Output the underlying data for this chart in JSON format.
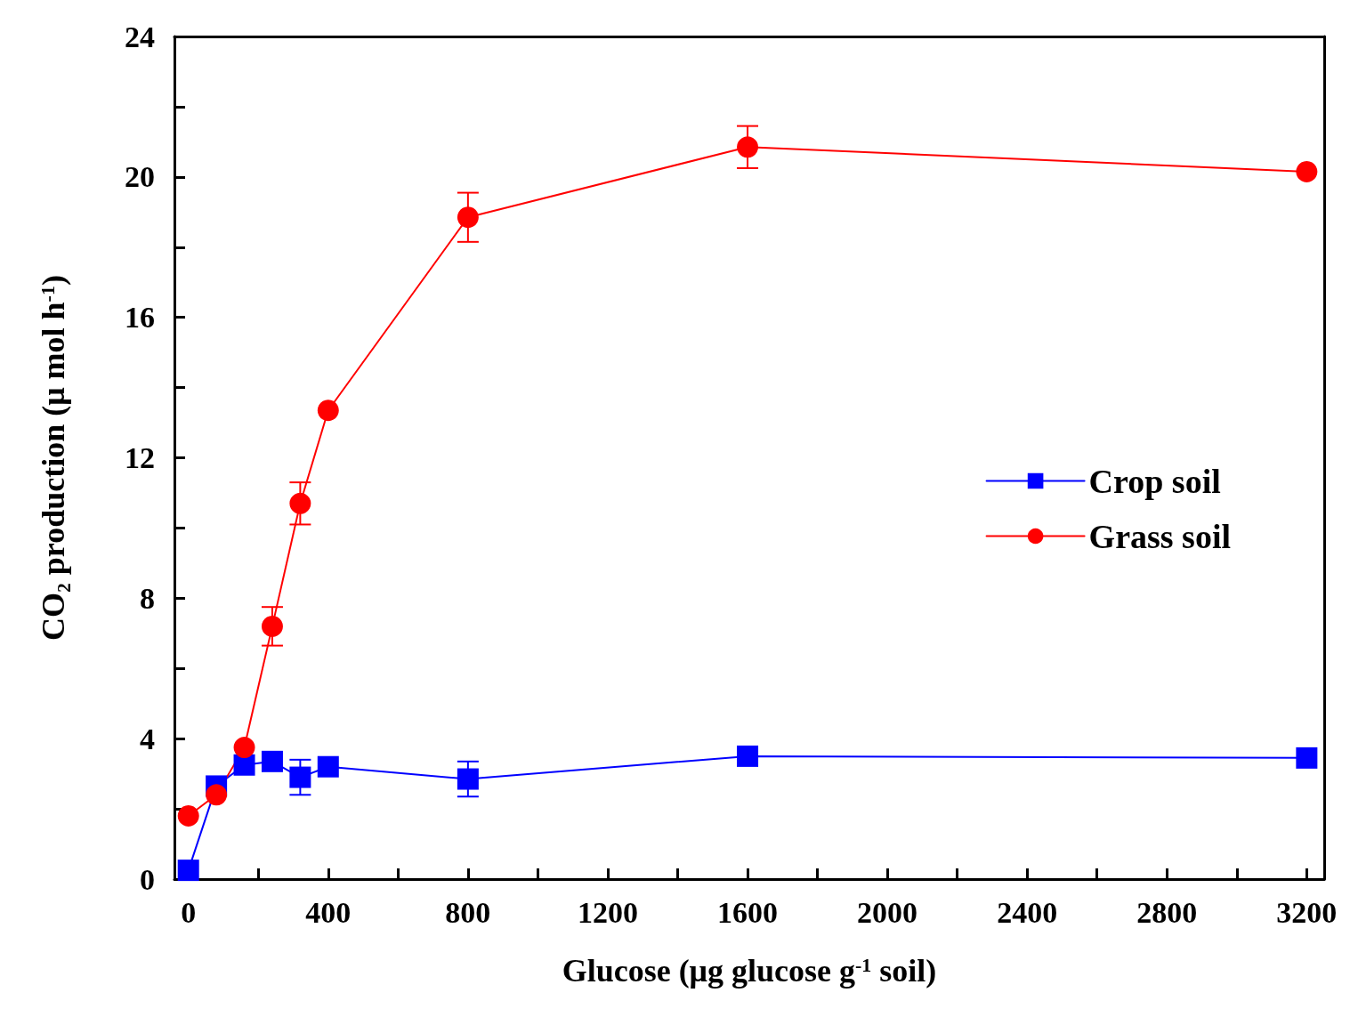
{
  "chart_data": {
    "type": "line",
    "xlabel": "Glucose (μg glucose g$^{-1}$ soil)",
    "ylabel": "CO₂ production (μ mol h$^{-1}$)",
    "x": [
      0,
      80,
      160,
      240,
      320,
      400,
      800,
      1600,
      3200
    ],
    "series": [
      {
        "name": "Crop soil",
        "color": "#0000ff",
        "marker": "square",
        "values": [
          0.25,
          2.65,
          3.25,
          3.35,
          2.9,
          3.2,
          2.85,
          3.5,
          3.45
        ],
        "errors": [
          null,
          null,
          null,
          null,
          0.5,
          null,
          0.5,
          null,
          null
        ]
      },
      {
        "name": "Grass soil",
        "color": "#ff0000",
        "marker": "circle",
        "values": [
          1.8,
          2.4,
          3.75,
          7.2,
          10.7,
          13.35,
          18.85,
          20.85,
          20.15
        ],
        "errors": [
          null,
          null,
          null,
          0.55,
          0.6,
          null,
          0.7,
          0.6,
          null
        ]
      }
    ],
    "xlim": [
      -40,
      3250
    ],
    "xticks": [
      0,
      {
        "value": 200,
        "label": null
      },
      400,
      {
        "value": 600,
        "label": null
      },
      800,
      {
        "value": 1000,
        "label": null
      },
      1200,
      {
        "value": 1400,
        "label": null
      },
      1600,
      {
        "value": 1800,
        "label": null
      },
      2000,
      {
        "value": 2200,
        "label": null
      },
      2400,
      {
        "value": 2600,
        "label": null
      },
      2800,
      {
        "value": 3000,
        "label": null
      },
      3200
    ],
    "ylim": [
      0,
      24
    ],
    "yticks": [
      0,
      {
        "value": 2,
        "label": null
      },
      4,
      {
        "value": 6,
        "label": null
      },
      8,
      {
        "value": 10,
        "label": null
      },
      12,
      {
        "value": 14,
        "label": null
      },
      16,
      {
        "value": 18,
        "label": null
      },
      20,
      {
        "value": 22,
        "label": null
      },
      24
    ],
    "grid": false,
    "legend": "right",
    "line_style": "solid"
  }
}
